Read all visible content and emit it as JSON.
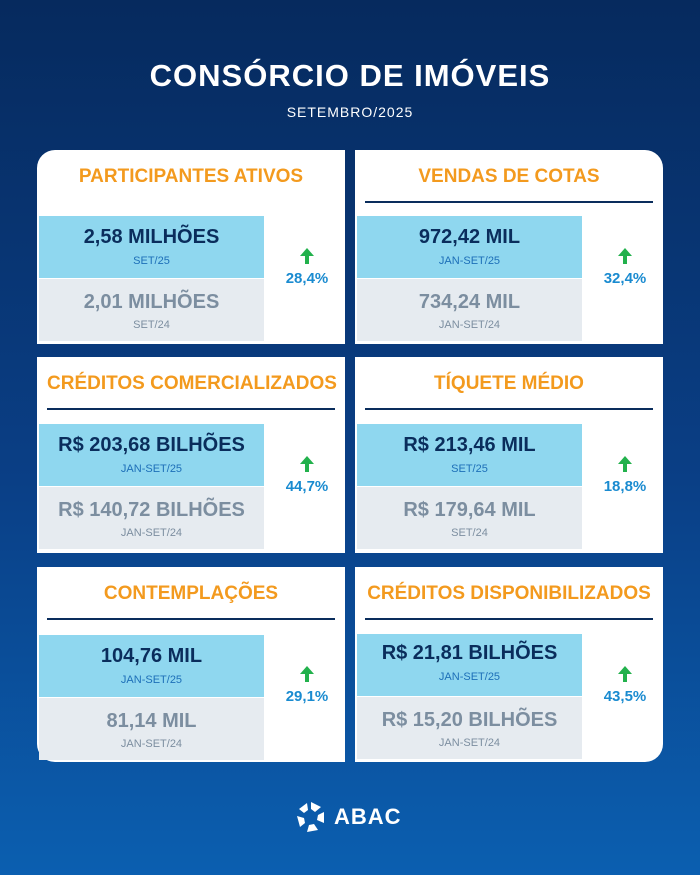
{
  "header": {
    "title": "CONSÓRCIO DE IMÓVEIS",
    "subtitle": "SETEMBRO/2025"
  },
  "colors": {
    "accent": "#f39a1e",
    "navy": "#0a2d5c",
    "current_bg": "#8fd7ef",
    "previous_bg": "#e6ebf0",
    "growth": "#1a8bd0",
    "arrow": "#22b14c"
  },
  "cards": [
    {
      "title": "PARTICIPANTES ATIVOS",
      "current_value": "2,58 MILHÕES",
      "current_period": "SET/25",
      "previous_value": "2,01 MILHÕES",
      "previous_period": "SET/24",
      "growth": "28,4%"
    },
    {
      "title": "VENDAS DE COTAS",
      "current_value": "972,42 MIL",
      "current_period": "JAN-SET/25",
      "previous_value": "734,24 MIL",
      "previous_period": "JAN-SET/24",
      "growth": "32,4%"
    },
    {
      "title": "CRÉDITOS COMERCIALIZADOS",
      "current_value": "R$ 203,68 BILHÕES",
      "current_period": "JAN-SET/25",
      "previous_value": "R$ 140,72 BILHÕES",
      "previous_period": "JAN-SET/24",
      "growth": "44,7%"
    },
    {
      "title": "TÍQUETE MÉDIO",
      "current_value": "R$ 213,46 MIL",
      "current_period": "SET/25",
      "previous_value": "R$ 179,64 MIL",
      "previous_period": "SET/24",
      "growth": "18,8%"
    },
    {
      "title": "CONTEMPLAÇÕES",
      "current_value": "104,76 MIL",
      "current_period": "JAN-SET/25",
      "previous_value": "81,14 MIL",
      "previous_period": "JAN-SET/24",
      "growth": "29,1%"
    },
    {
      "title": "CRÉDITOS DISPONIBILIZADOS",
      "current_value": "R$ 21,81 BILHÕES",
      "current_period": "JAN-SET/25",
      "previous_value": "R$ 15,20 BILHÕES",
      "previous_period": "JAN-SET/24",
      "growth": "43,5%"
    }
  ],
  "footer": {
    "logo_text": "ABAC",
    "logo_icon": "abac-logo-icon"
  }
}
